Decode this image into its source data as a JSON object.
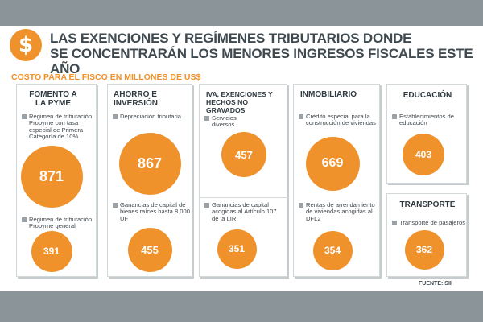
{
  "header": {
    "icon": "dollar-icon",
    "line1": "LAS EXENCIONES Y REGÍMENES TRIBUTARIOS DONDE",
    "line2": "SE CONCENTRARÁN LOS MENORES INGRESOS FISCALES ESTE AÑO",
    "subtitle": "COSTO PARA EL FISCO EN MILLONES DE US$"
  },
  "source": "FUENTE: SII",
  "colors": {
    "accent": "#f0922c",
    "band": "#8a9499",
    "title": "#3f4a50"
  },
  "chart_data": {
    "type": "bubble",
    "unit": "Millones de US$",
    "title": "COSTO PARA EL FISCO EN MILLONES DE US$",
    "groups": [
      {
        "name": "FOMENTO A LA PYME",
        "items": [
          {
            "label": "Régimen de tributación Propyme con tasa especial de Primera Categoría de 10%",
            "value": 871
          },
          {
            "label": "Régimen de tributación Propyme general",
            "value": 391
          }
        ]
      },
      {
        "name": "AHORRO E INVERSIÓN",
        "items": [
          {
            "label": "Depreciación tributaria",
            "value": 867
          },
          {
            "label": "Ganancias de capital de bienes raíces hasta 8.000 UF",
            "value": 455
          }
        ]
      },
      {
        "name": "IVA, EXENCIONES Y HECHOS NO GRAVADOS",
        "items": [
          {
            "label": "Servicios diversos",
            "value": 457
          },
          {
            "label": "Ganancias de capital acogidas al Artículo 107 de la LIR",
            "value": 351
          }
        ]
      },
      {
        "name": "INMOBILIARIO",
        "items": [
          {
            "label": "Crédito especial para la construcción de viviendas",
            "value": 669
          },
          {
            "label": "Rentas de arrendamiento de viviendas acogidas al DFL2",
            "value": 354
          }
        ]
      },
      {
        "name": "EDUCACIÓN",
        "items": [
          {
            "label": "Establecimientos de educación",
            "value": 403
          }
        ]
      },
      {
        "name": "TRANSPORTE",
        "items": [
          {
            "label": "Transporte de pasajeros",
            "value": 362
          }
        ]
      }
    ]
  }
}
